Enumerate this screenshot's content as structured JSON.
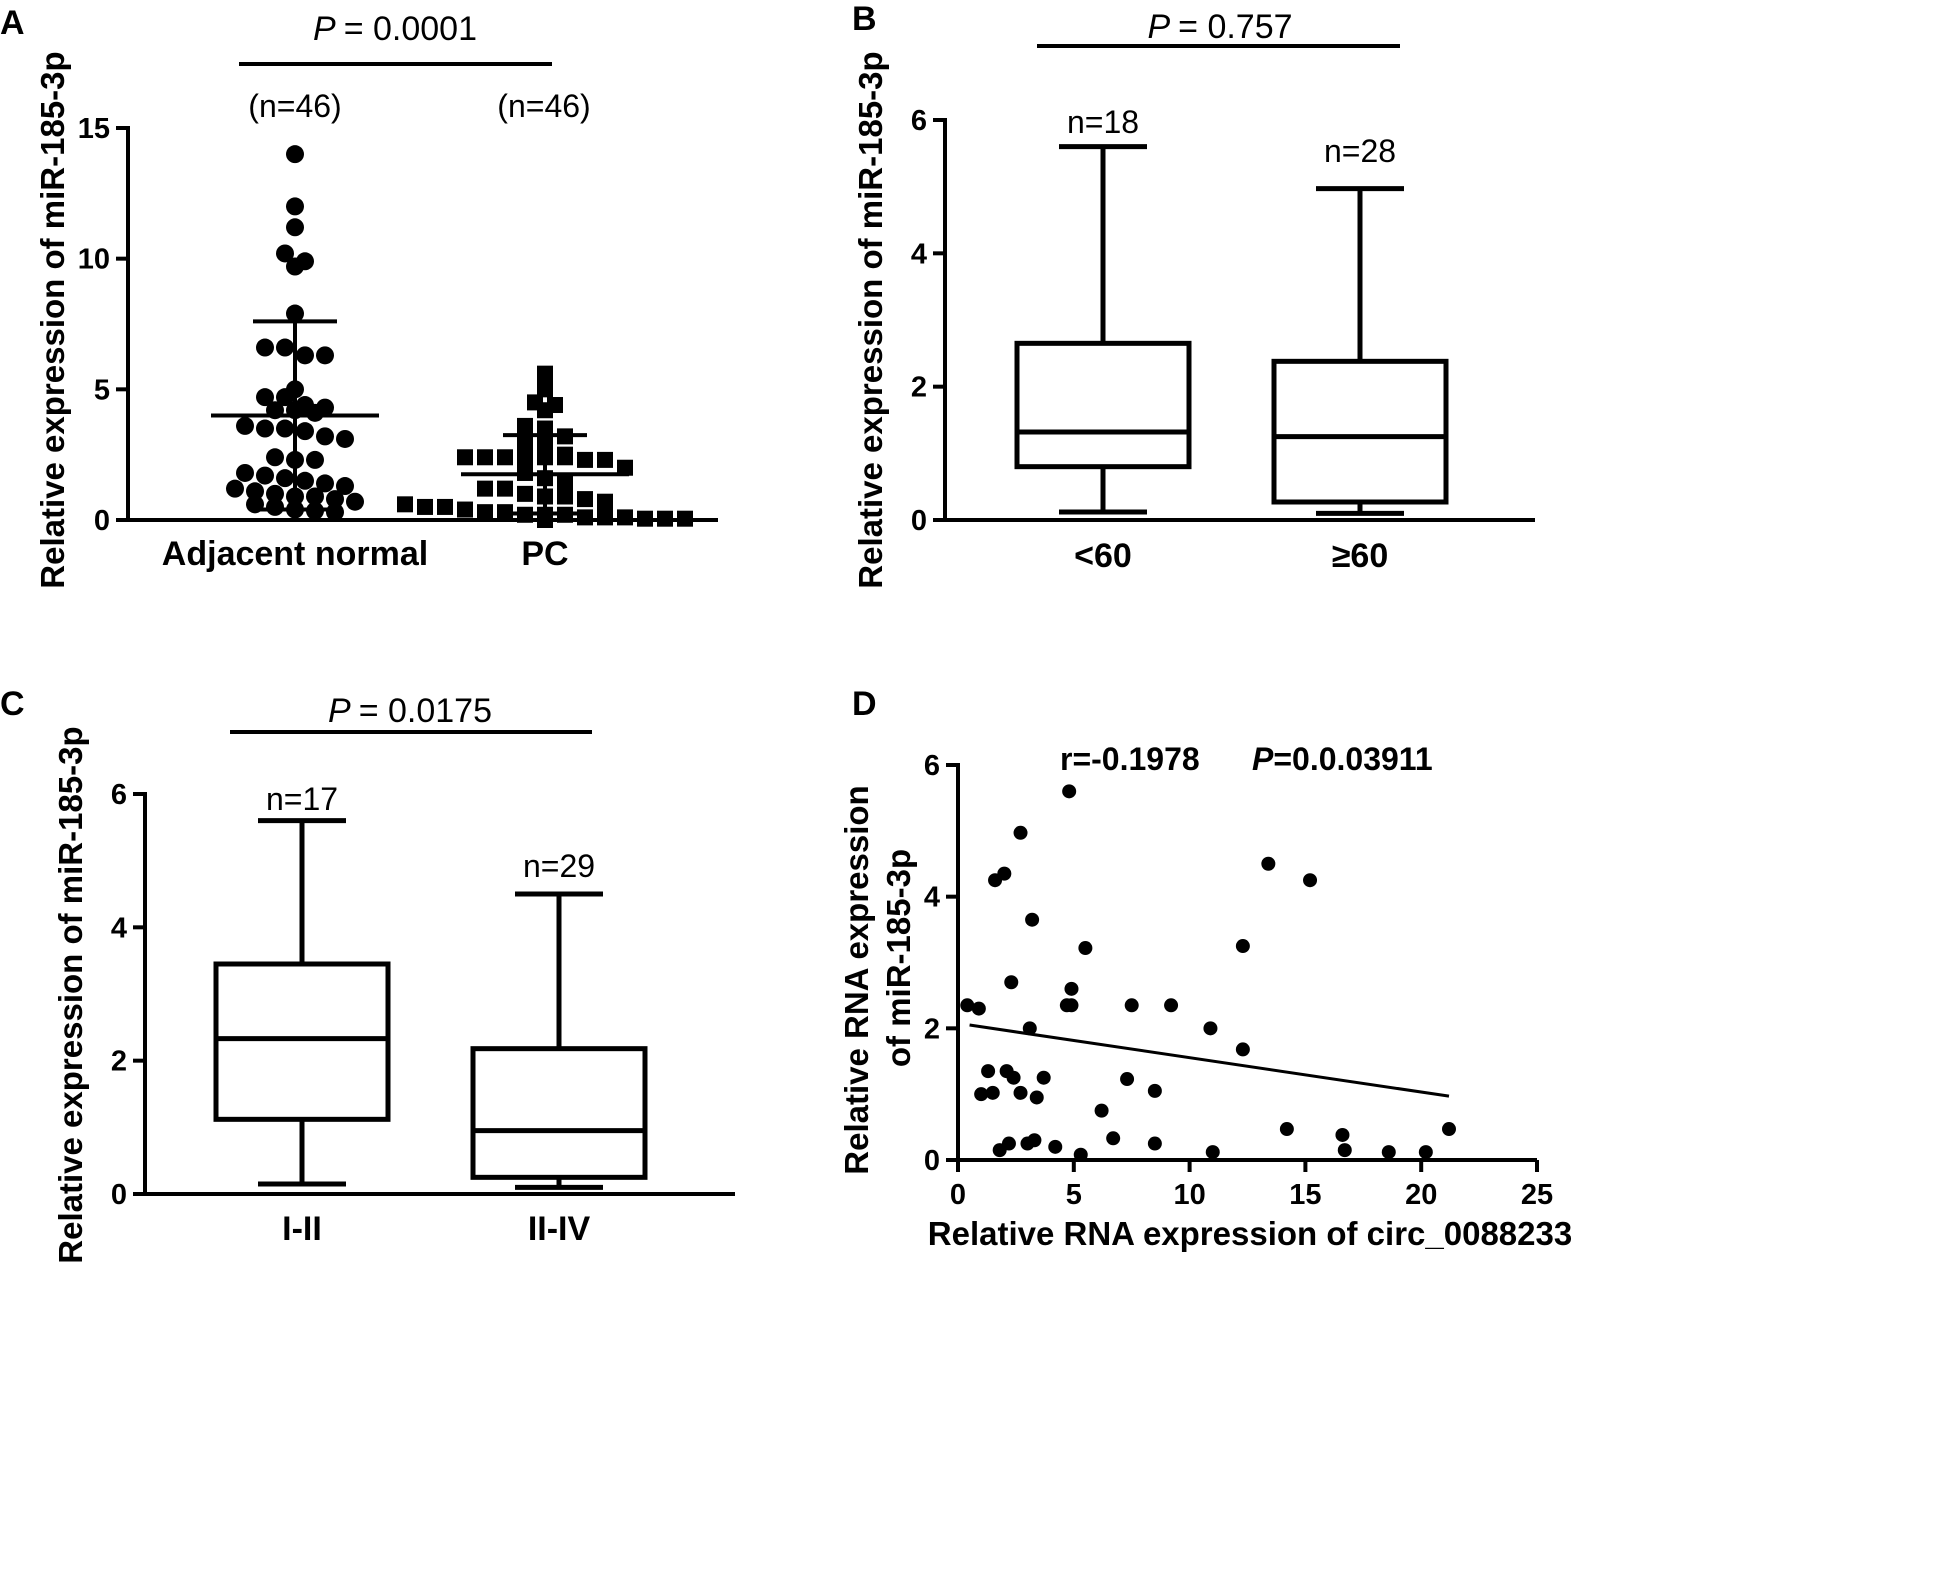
{
  "chart_data": [
    {
      "id": "A",
      "type": "scatter",
      "panel_label": "A",
      "p_label": "P",
      "p_value": "= 0.0001",
      "ylabel": "Relative expression of miR-185-3p",
      "ylim": [
        0,
        15
      ],
      "yticks": [
        0,
        5,
        10,
        15
      ],
      "categories": [
        "Adjacent normal",
        "PC"
      ],
      "n_labels": [
        "(n=46)",
        "(n=46)"
      ],
      "series": [
        {
          "name": "Adjacent normal",
          "marker": "circle",
          "mean": 4.0,
          "sd_high": 7.6,
          "sd_low": 0.4,
          "values": [
            14.0,
            12.0,
            11.2,
            10.2,
            9.9,
            9.7,
            7.9,
            6.6,
            6.6,
            6.3,
            6.3,
            5.0,
            4.7,
            4.7,
            4.4,
            4.3,
            4.2,
            4.2,
            4.1,
            3.6,
            3.5,
            3.5,
            3.4,
            3.2,
            3.1,
            2.4,
            2.3,
            2.3,
            1.8,
            1.7,
            1.6,
            1.5,
            1.4,
            1.3,
            1.2,
            1.1,
            1.0,
            0.9,
            0.9,
            0.8,
            0.7,
            0.6,
            0.5,
            0.4,
            0.35,
            0.3
          ]
        },
        {
          "name": "PC",
          "marker": "square",
          "mean": 1.75,
          "sd_high": 3.25,
          "sd_low": 0.25,
          "values": [
            5.6,
            5.0,
            4.5,
            4.4,
            4.2,
            3.6,
            3.5,
            3.2,
            3.0,
            2.9,
            2.5,
            2.4,
            2.4,
            2.4,
            2.4,
            2.4,
            2.4,
            2.3,
            2.3,
            2.0,
            1.8,
            1.6,
            1.5,
            1.2,
            1.2,
            1.0,
            0.9,
            0.9,
            0.8,
            0.7,
            0.6,
            0.5,
            0.5,
            0.4,
            0.3,
            0.3,
            0.2,
            0.2,
            0.2,
            0.1,
            0.1,
            0.1,
            0.05,
            0.05,
            0.05,
            0.0
          ]
        }
      ]
    },
    {
      "id": "B",
      "type": "box",
      "panel_label": "B",
      "p_label": "P",
      "p_value": "= 0.757",
      "ylabel": "Relative expression of miR-185-3p",
      "ylim": [
        0,
        6
      ],
      "yticks": [
        0,
        2,
        4,
        6
      ],
      "categories": [
        "<60",
        "≥60"
      ],
      "n_labels": [
        "n=18",
        "n=28"
      ],
      "boxes": [
        {
          "min": 0.12,
          "q1": 0.8,
          "median": 1.32,
          "q3": 2.65,
          "max": 5.6
        },
        {
          "min": 0.1,
          "q1": 0.27,
          "median": 1.25,
          "q3": 2.38,
          "max": 4.97
        }
      ]
    },
    {
      "id": "C",
      "type": "box",
      "panel_label": "C",
      "p_label": "P",
      "p_value": "= 0.0175",
      "ylabel": "Relative expression of miR-185-3p",
      "ylim": [
        0,
        6
      ],
      "yticks": [
        0,
        2,
        4,
        6
      ],
      "categories": [
        "I-II",
        "II-IV"
      ],
      "n_labels": [
        "n=17",
        "n=29"
      ],
      "boxes": [
        {
          "min": 0.15,
          "q1": 1.12,
          "median": 2.33,
          "q3": 3.45,
          "max": 5.6
        },
        {
          "min": 0.1,
          "q1": 0.25,
          "median": 0.95,
          "q3": 2.18,
          "max": 4.5
        }
      ]
    },
    {
      "id": "D",
      "type": "scatter",
      "panel_label": "D",
      "r_text": "r=-0.1978",
      "p_label": "P",
      "p_value": "=0.0.03911",
      "xlabel": "Relative RNA expression of circ_0088233",
      "ylabel_line1": "Relative RNA expression",
      "ylabel_line2": "of miR-185-3p",
      "xlim": [
        0,
        25
      ],
      "ylim": [
        0,
        6
      ],
      "xticks": [
        0,
        5,
        10,
        15,
        20,
        25
      ],
      "yticks": [
        0,
        2,
        4,
        6
      ],
      "regression": {
        "x": [
          0.5,
          21.2
        ],
        "y": [
          2.05,
          0.97
        ]
      },
      "points": [
        [
          0.4,
          2.35
        ],
        [
          0.9,
          2.3
        ],
        [
          1.0,
          1.0
        ],
        [
          1.3,
          1.35
        ],
        [
          1.5,
          1.02
        ],
        [
          1.6,
          4.25
        ],
        [
          1.8,
          0.15
        ],
        [
          2.0,
          4.35
        ],
        [
          2.1,
          1.35
        ],
        [
          2.2,
          0.25
        ],
        [
          2.3,
          2.7
        ],
        [
          2.4,
          1.25
        ],
        [
          2.7,
          1.02
        ],
        [
          2.7,
          4.97
        ],
        [
          3.0,
          0.25
        ],
        [
          3.1,
          2.0
        ],
        [
          3.2,
          3.65
        ],
        [
          3.3,
          0.3
        ],
        [
          3.4,
          0.95
        ],
        [
          3.7,
          1.25
        ],
        [
          4.2,
          0.2
        ],
        [
          4.7,
          2.35
        ],
        [
          4.8,
          5.6
        ],
        [
          4.9,
          2.6
        ],
        [
          4.9,
          2.35
        ],
        [
          5.3,
          0.08
        ],
        [
          5.5,
          3.22
        ],
        [
          6.2,
          0.75
        ],
        [
          6.7,
          0.33
        ],
        [
          7.3,
          1.23
        ],
        [
          7.5,
          2.35
        ],
        [
          8.5,
          1.05
        ],
        [
          8.5,
          0.25
        ],
        [
          9.2,
          2.35
        ],
        [
          10.9,
          2.0
        ],
        [
          11.0,
          0.12
        ],
        [
          12.3,
          3.25
        ],
        [
          12.3,
          1.68
        ],
        [
          13.4,
          4.5
        ],
        [
          14.2,
          0.47
        ],
        [
          15.2,
          4.25
        ],
        [
          16.6,
          0.38
        ],
        [
          16.7,
          0.15
        ],
        [
          18.6,
          0.12
        ],
        [
          20.2,
          0.12
        ],
        [
          21.2,
          0.47
        ]
      ]
    }
  ]
}
